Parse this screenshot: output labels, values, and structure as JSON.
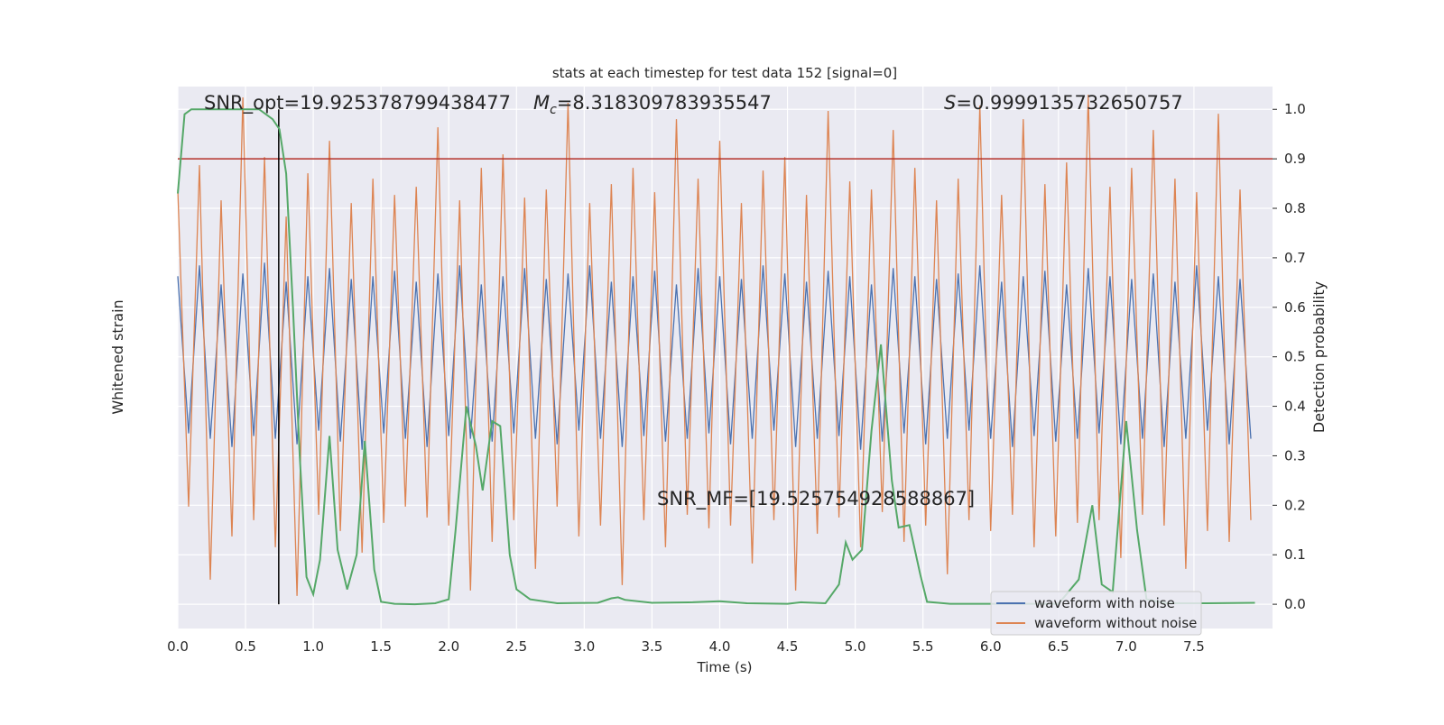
{
  "chart_data": {
    "type": "line",
    "title": "stats at each timestep for test data 152 [signal=0]",
    "x_label": "Time (s)",
    "y_label": "Whitened strain",
    "y2_label": "Detection probability",
    "xlim": [
      0,
      8.08
    ],
    "ylim": [
      -1,
      1
    ],
    "y2lim": [
      -0.049,
      1.046
    ],
    "xticks": [
      {
        "value": 0,
        "label": "0.0"
      },
      0.5,
      {
        "value": 1,
        "label": "1.0"
      },
      1.5,
      {
        "value": 2,
        "label": "2.0"
      },
      2.5,
      {
        "value": 3,
        "label": "3.0"
      },
      3.5,
      {
        "value": 4,
        "label": "4.0"
      },
      4.5,
      {
        "value": 5,
        "label": "5.0"
      },
      5.5,
      {
        "value": 6,
        "label": "6.0"
      },
      6.5,
      {
        "value": 7,
        "label": "7.0"
      },
      7.5
    ],
    "y2ticks": [
      {
        "value": 0,
        "label": "0.0"
      },
      0.1,
      0.2,
      0.3,
      0.4,
      0.5,
      0.6,
      0.7,
      0.8,
      0.9,
      {
        "value": 1,
        "label": "1.0"
      }
    ],
    "grid": true,
    "legend": "lower right",
    "x": [
      0,
      0.08,
      0.16,
      0.24,
      0.32,
      0.4,
      0.48,
      0.56,
      0.64,
      0.72,
      0.8,
      0.88,
      0.96,
      1.04,
      1.12,
      1.2,
      1.28,
      1.36,
      1.44,
      1.52,
      1.6,
      1.68,
      1.76,
      1.84,
      1.92,
      2,
      2.08,
      2.16,
      2.24,
      2.32,
      2.4,
      2.48,
      2.56,
      2.64,
      2.72,
      2.8,
      2.88,
      2.96,
      3.04,
      3.12,
      3.2,
      3.28,
      3.36,
      3.44,
      3.52,
      3.6,
      3.68,
      3.76,
      3.84,
      3.92,
      4,
      4.08,
      4.16,
      4.24,
      4.32,
      4.4,
      4.48,
      4.56,
      4.64,
      4.72,
      4.8,
      4.88,
      4.96,
      5.04,
      5.12,
      5.2,
      5.28,
      5.36,
      5.44,
      5.52,
      5.6,
      5.68,
      5.76,
      5.84,
      5.92,
      6,
      6.08,
      6.16,
      6.24,
      6.32,
      6.4,
      6.48,
      6.56,
      6.64,
      6.72,
      6.8,
      6.88,
      6.96,
      7.04,
      7.12,
      7.2,
      7.28,
      7.36,
      7.44,
      7.52,
      7.6,
      7.68,
      7.76,
      7.84,
      7.92
    ],
    "series": [
      {
        "name": "waveform with noise",
        "color": "#4c72b0",
        "values": [
          0.3,
          -0.28,
          0.34,
          -0.3,
          0.27,
          -0.33,
          0.31,
          -0.29,
          0.35,
          -0.3,
          0.28,
          -0.32,
          0.3,
          -0.27,
          0.33,
          -0.31,
          0.29,
          -0.34,
          0.3,
          -0.28,
          0.32,
          -0.3,
          0.28,
          -0.33,
          0.31,
          -0.29,
          0.34,
          -0.3,
          0.27,
          -0.31,
          0.3,
          -0.28,
          0.33,
          -0.3,
          0.29,
          -0.32,
          0.31,
          -0.27,
          0.34,
          -0.3,
          0.28,
          -0.33,
          0.3,
          -0.29,
          0.32,
          -0.31,
          0.27,
          -0.3,
          0.33,
          -0.28,
          0.3,
          -0.32,
          0.29,
          -0.3,
          0.34,
          -0.27,
          0.31,
          -0.33,
          0.28,
          -0.3,
          0.32,
          -0.29,
          0.3,
          -0.34,
          0.27,
          -0.31,
          0.33,
          -0.28,
          0.3,
          -0.32,
          0.29,
          -0.3,
          0.31,
          -0.27,
          0.34,
          -0.3,
          0.28,
          -0.33,
          0.3,
          -0.29,
          0.32,
          -0.31,
          0.27,
          -0.3,
          0.33,
          -0.28,
          0.3,
          -0.32,
          0.29,
          -0.3,
          0.31,
          -0.33,
          0.28,
          -0.3,
          0.34,
          -0.27,
          0.3,
          -0.32,
          0.29,
          -0.3
        ]
      },
      {
        "name": "waveform without noise",
        "color": "#dd8452",
        "values": [
          0.62,
          -0.55,
          0.71,
          -0.82,
          0.58,
          -0.66,
          0.96,
          -0.6,
          0.74,
          -0.7,
          0.52,
          -0.88,
          0.68,
          -0.58,
          0.8,
          -0.64,
          0.57,
          -0.72,
          0.66,
          -0.61,
          0.6,
          -0.55,
          0.63,
          -0.59,
          0.85,
          -0.62,
          0.58,
          -0.86,
          0.7,
          -0.68,
          0.75,
          -0.6,
          0.59,
          -0.78,
          0.62,
          -0.55,
          0.94,
          -0.66,
          0.57,
          -0.62,
          0.64,
          -0.84,
          0.7,
          -0.6,
          0.61,
          -0.7,
          0.88,
          -0.58,
          0.66,
          -0.63,
          0.8,
          -0.62,
          0.57,
          -0.76,
          0.69,
          -0.6,
          0.74,
          -0.86,
          0.6,
          -0.65,
          0.91,
          -0.59,
          0.65,
          -0.7,
          0.62,
          -0.57,
          0.84,
          -0.68,
          0.7,
          -0.62,
          0.58,
          -0.8,
          0.66,
          -0.6,
          0.93,
          -0.64,
          0.6,
          -0.58,
          0.88,
          -0.7,
          0.64,
          -0.66,
          0.72,
          -0.61,
          0.97,
          -0.6,
          0.63,
          -0.74,
          0.7,
          -0.58,
          0.84,
          -0.62,
          0.66,
          -0.78,
          0.61,
          -0.64,
          0.9,
          -0.68,
          0.62,
          -0.6
        ]
      },
      {
        "color": "#55a868",
        "axis": "y2",
        "x": [
          0,
          0.05,
          0.1,
          0.2,
          0.3,
          0.4,
          0.5,
          0.6,
          0.7,
          0.75,
          0.8,
          0.85,
          0.9,
          0.95,
          1.0,
          1.05,
          1.12,
          1.18,
          1.25,
          1.32,
          1.38,
          1.45,
          1.5,
          1.6,
          1.75,
          1.9,
          2.0,
          2.05,
          2.13,
          2.2,
          2.25,
          2.32,
          2.38,
          2.45,
          2.5,
          2.6,
          2.8,
          3.1,
          3.2,
          3.25,
          3.3,
          3.5,
          3.8,
          4.0,
          4.2,
          4.5,
          4.6,
          4.78,
          4.88,
          4.93,
          4.98,
          5.05,
          5.12,
          5.19,
          5.27,
          5.32,
          5.4,
          5.48,
          5.53,
          5.7,
          6.0,
          6.5,
          6.65,
          6.75,
          6.82,
          6.9,
          7.0,
          7.08,
          7.15,
          7.3,
          7.6,
          7.95
        ],
        "values": [
          0.83,
          0.99,
          1.0,
          1.0,
          1.0,
          1.0,
          1.0,
          1.0,
          0.98,
          0.96,
          0.87,
          0.6,
          0.3,
          0.055,
          0.02,
          0.09,
          0.34,
          0.11,
          0.03,
          0.1,
          0.33,
          0.07,
          0.005,
          0.001,
          0.0,
          0.002,
          0.01,
          0.15,
          0.4,
          0.32,
          0.23,
          0.37,
          0.36,
          0.1,
          0.03,
          0.01,
          0.002,
          0.003,
          0.012,
          0.014,
          0.009,
          0.003,
          0.004,
          0.006,
          0.002,
          0.001,
          0.004,
          0.002,
          0.04,
          0.125,
          0.09,
          0.11,
          0.35,
          0.525,
          0.25,
          0.155,
          0.16,
          0.06,
          0.005,
          0.001,
          0.001,
          0.001,
          0.05,
          0.2,
          0.04,
          0.025,
          0.37,
          0.15,
          0.01,
          0.002,
          0.002,
          0.003
        ]
      }
    ],
    "threshold": {
      "value": 0.9,
      "color": "#b5312a"
    },
    "marker_line": {
      "x": 0.745,
      "y2range": [
        0,
        1.0
      ],
      "color": "#000000"
    },
    "annotations": {
      "snr_opt": "SNR_opt=19.925378799438477",
      "mc_symbol": "M",
      "mc_subscript": "c",
      "mc_value": "=8.318309783935547",
      "s_symbol": "S",
      "s_value": "=0.9999135732650757",
      "snr_mf": "SNR_MF=[19.525754928588867]"
    }
  }
}
